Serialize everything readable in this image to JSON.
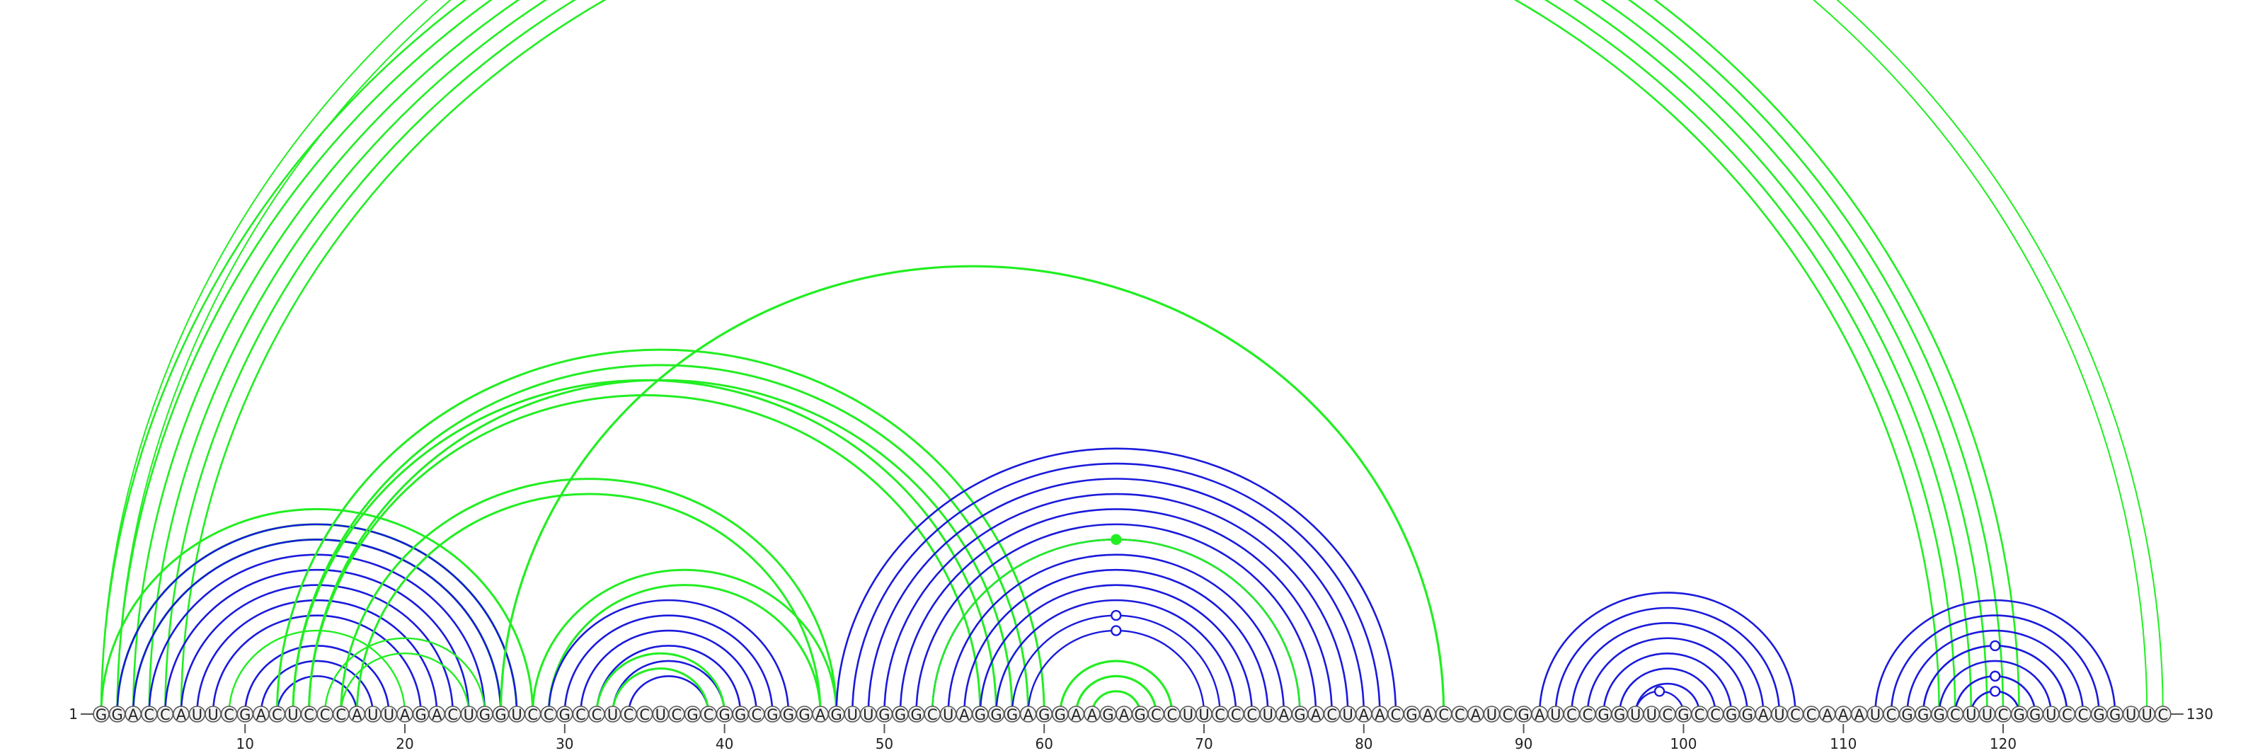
{
  "sequence": "GGACCAUUCGACUCCCAUUAGACUGGUCCGCCUCCUCGCGGCGGGAGUUGGGCUAGGGAGGAAGAGCCUUCCCUAGACUAACGACCAUCGAUCCGGUUCGCCGGAUCCAAAUCGGGCUUCGGUCCGGUUC",
  "start_label": "1",
  "end_label": "130",
  "tick_labels": [
    "10",
    "20",
    "30",
    "40",
    "50",
    "60",
    "70",
    "80",
    "90",
    "100",
    "110",
    "120"
  ],
  "colors": {
    "blue": "#1a1adc",
    "green": "#22ee22"
  },
  "chart_data": {
    "type": "arc-diagram",
    "sequence_length": 130,
    "ticks": [
      10,
      20,
      30,
      40,
      50,
      60,
      70,
      80,
      90,
      100,
      110,
      120
    ],
    "helices": [
      {
        "color": "green",
        "i": 1,
        "j": 121,
        "n": 6,
        "stroke": 2.6,
        "end": "none"
      },
      {
        "color": "green",
        "i": 1,
        "j": 130,
        "n": 1,
        "stroke": 2.0,
        "end": "open"
      },
      {
        "color": "green",
        "i": 2,
        "j": 129,
        "n": 1,
        "stroke": 2.0,
        "end": "none"
      },
      {
        "color": "green",
        "i": 1,
        "j": 28,
        "n": 3,
        "stroke": 3.0,
        "end": "none"
      },
      {
        "color": "blue",
        "i": 2,
        "j": 27,
        "n": 7,
        "stroke": 2.6,
        "end": "none"
      },
      {
        "color": "green",
        "i": 9,
        "j": 20,
        "n": 1,
        "stroke": 2.4,
        "end": "none"
      },
      {
        "color": "blue",
        "i": 10,
        "j": 19,
        "n": 3,
        "stroke": 2.6,
        "end": "none"
      },
      {
        "color": "green",
        "i": 12,
        "j": 60,
        "n": 3,
        "stroke": 3.0,
        "end": "none"
      },
      {
        "color": "green",
        "i": 13,
        "j": 57,
        "n": 2,
        "stroke": 3.0,
        "end": "none"
      },
      {
        "color": "green",
        "i": 15,
        "j": 25,
        "n": 2,
        "stroke": 2.4,
        "end": "none"
      },
      {
        "color": "green",
        "i": 16,
        "j": 47,
        "n": 2,
        "stroke": 3.0,
        "end": "none"
      },
      {
        "color": "green",
        "i": 26,
        "j": 85,
        "n": 1,
        "stroke": 3.2,
        "end": "none"
      },
      {
        "color": "green",
        "i": 28,
        "j": 47,
        "n": 2,
        "stroke": 3.0,
        "end": "none"
      },
      {
        "color": "blue",
        "i": 29,
        "j": 44,
        "n": 6,
        "stroke": 2.6,
        "end": "none"
      },
      {
        "color": "green",
        "i": 32,
        "j": 40,
        "n": 2,
        "stroke": 3.0,
        "end": "none"
      },
      {
        "color": "blue",
        "i": 47,
        "j": 82,
        "n": 11,
        "stroke": 2.6,
        "end": "none"
      },
      {
        "color": "blue",
        "i": 59,
        "j": 70,
        "n": 1,
        "stroke": 2.4,
        "end": "open"
      },
      {
        "color": "blue",
        "i": 58,
        "j": 71,
        "n": 1,
        "stroke": 2.4,
        "end": "open"
      },
      {
        "color": "green",
        "i": 53,
        "j": 76,
        "n": 1,
        "stroke": 2.6,
        "end": "filled"
      },
      {
        "color": "green",
        "i": 61,
        "j": 68,
        "n": 3,
        "stroke": 3.2,
        "end": "none"
      },
      {
        "color": "blue",
        "i": 91,
        "j": 107,
        "n": 7,
        "stroke": 2.6,
        "end": "none"
      },
      {
        "color": "blue",
        "i": 97,
        "j": 100,
        "n": 1,
        "stroke": 2.4,
        "end": "open"
      },
      {
        "color": "blue",
        "i": 112,
        "j": 127,
        "n": 7,
        "stroke": 2.6,
        "end": "none"
      },
      {
        "color": "blue",
        "i": 118,
        "j": 121,
        "n": 1,
        "stroke": 2.4,
        "end": "open"
      },
      {
        "color": "blue",
        "i": 117,
        "j": 122,
        "n": 1,
        "stroke": 2.4,
        "end": "open"
      },
      {
        "color": "blue",
        "i": 115,
        "j": 124,
        "n": 1,
        "stroke": 2.4,
        "end": "open"
      }
    ]
  }
}
